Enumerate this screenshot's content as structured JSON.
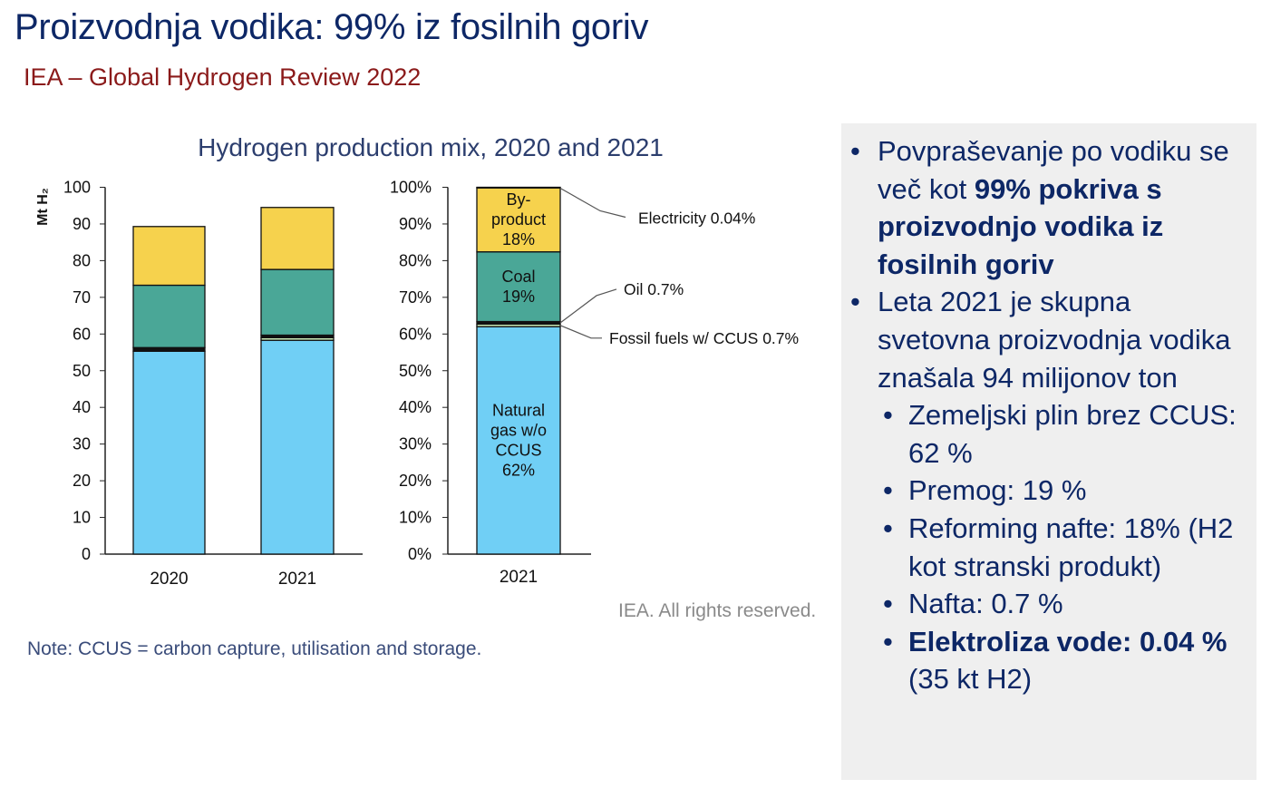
{
  "slide": {
    "title": "Proizvodnja vodika: 99% iz fosilnih goriv",
    "subtitle": "IEA – Global Hydrogen Review 2022",
    "credit": "IEA. All rights reserved.",
    "note": "Note: CCUS = carbon capture, utilisation and storage."
  },
  "bullets": {
    "b1_pre": "Povpraševanje po vodiku se več kot ",
    "b1_bold": "99% pokriva s proizvodnjo vodika iz fosilnih goriv",
    "b2": "Leta 2021 je skupna svetovna proizvodnja vodika znašala 94 milijonov ton",
    "s1": "Zemeljski plin brez CCUS: 62 %",
    "s2": "Premog: 19 %",
    "s3": "Reforming nafte: 18% (H2 kot stranski produkt)",
    "s4": "Nafta: 0.7 %",
    "s5_bold": "Elektroliza vode: 0.04 %",
    "s5_rest": " (35 kt H2)"
  },
  "colors": {
    "natural_gas": "#70cff5",
    "fossil_ccus": "#c9eab6",
    "oil": "#111111",
    "coal": "#4aa797",
    "byproduct": "#f6d24d",
    "title_navy": "#0d2766",
    "subtitle_red": "#8b1a1a",
    "panel_bg": "#efefef"
  },
  "chart_data": [
    {
      "type": "bar",
      "stacked": true,
      "title": "Hydrogen production mix, 2020 and 2021",
      "ylabel": "Mt H₂",
      "categories": [
        "2020",
        "2021"
      ],
      "ylim": [
        0,
        100
      ],
      "yticks": [
        "0",
        "10",
        "20",
        "30",
        "40",
        "50",
        "60",
        "70",
        "80",
        "90",
        "100"
      ],
      "series": [
        {
          "key": "natural_gas",
          "values": [
            55.3,
            58.3
          ]
        },
        {
          "key": "fossil_ccus",
          "values": [
            0.0,
            0.7
          ]
        },
        {
          "key": "oil",
          "values": [
            1.0,
            0.7
          ]
        },
        {
          "key": "coal",
          "values": [
            17.0,
            17.9
          ]
        },
        {
          "key": "byproduct",
          "values": [
            16.0,
            16.9
          ]
        }
      ]
    },
    {
      "type": "bar",
      "stacked": true,
      "categories": [
        "2021"
      ],
      "ylim": [
        0,
        100
      ],
      "yticks": [
        "0%",
        "10%",
        "20%",
        "30%",
        "40%",
        "50%",
        "60%",
        "70%",
        "80%",
        "90%",
        "100%"
      ],
      "series": [
        {
          "key": "natural_gas",
          "values": [
            62
          ],
          "label": [
            "Natural",
            "gas w/o",
            "CCUS",
            "62%"
          ]
        },
        {
          "key": "fossil_ccus",
          "values": [
            0.7
          ]
        },
        {
          "key": "oil",
          "values": [
            0.7
          ]
        },
        {
          "key": "coal",
          "values": [
            19
          ],
          "label": [
            "Coal",
            "19%"
          ]
        },
        {
          "key": "byproduct",
          "values": [
            17.56
          ],
          "label": [
            "By-",
            "product",
            "18%"
          ]
        },
        {
          "key": "electricity",
          "values": [
            0.04
          ]
        }
      ],
      "callouts": {
        "electricity": "Electricity 0.04%",
        "oil": "Oil 0.7%",
        "fossil_ccus": "Fossil fuels w/ CCUS 0.7%"
      }
    }
  ]
}
